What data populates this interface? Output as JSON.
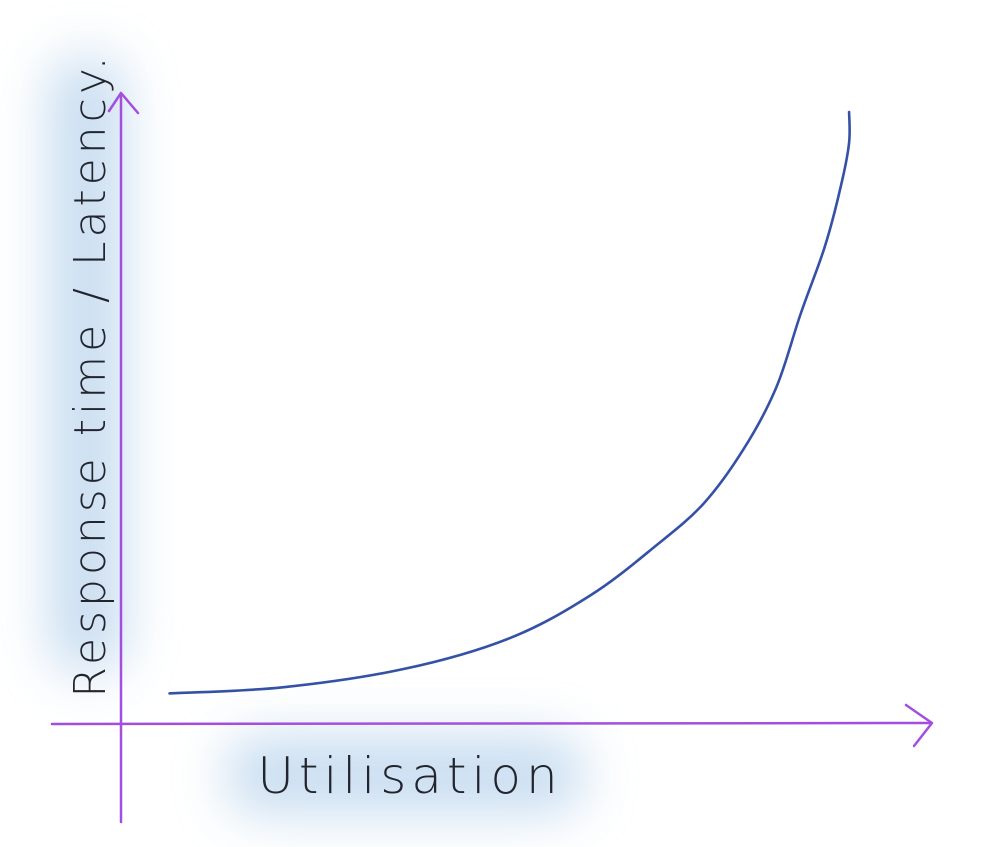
{
  "chart_data": {
    "type": "line",
    "title": "",
    "xlabel": "Utilisation",
    "ylabel": "Response time / Latency.",
    "grid": false,
    "legend": "none",
    "axis_color": "#a24fe0",
    "line_color": "#3451a5",
    "glow_color": "#b8d3ec",
    "series": [
      {
        "x": [
          0.06,
          0.2,
          0.35,
          0.48,
          0.58,
          0.66,
          0.72,
          0.77,
          0.81,
          0.84,
          0.87,
          0.89,
          0.9,
          0.9
        ],
        "y": [
          0.05,
          0.06,
          0.09,
          0.14,
          0.21,
          0.29,
          0.36,
          0.45,
          0.55,
          0.67,
          0.78,
          0.88,
          0.95,
          1.0
        ]
      }
    ],
    "xlim": [
      0,
      1
    ],
    "ylim": [
      0,
      1
    ]
  }
}
